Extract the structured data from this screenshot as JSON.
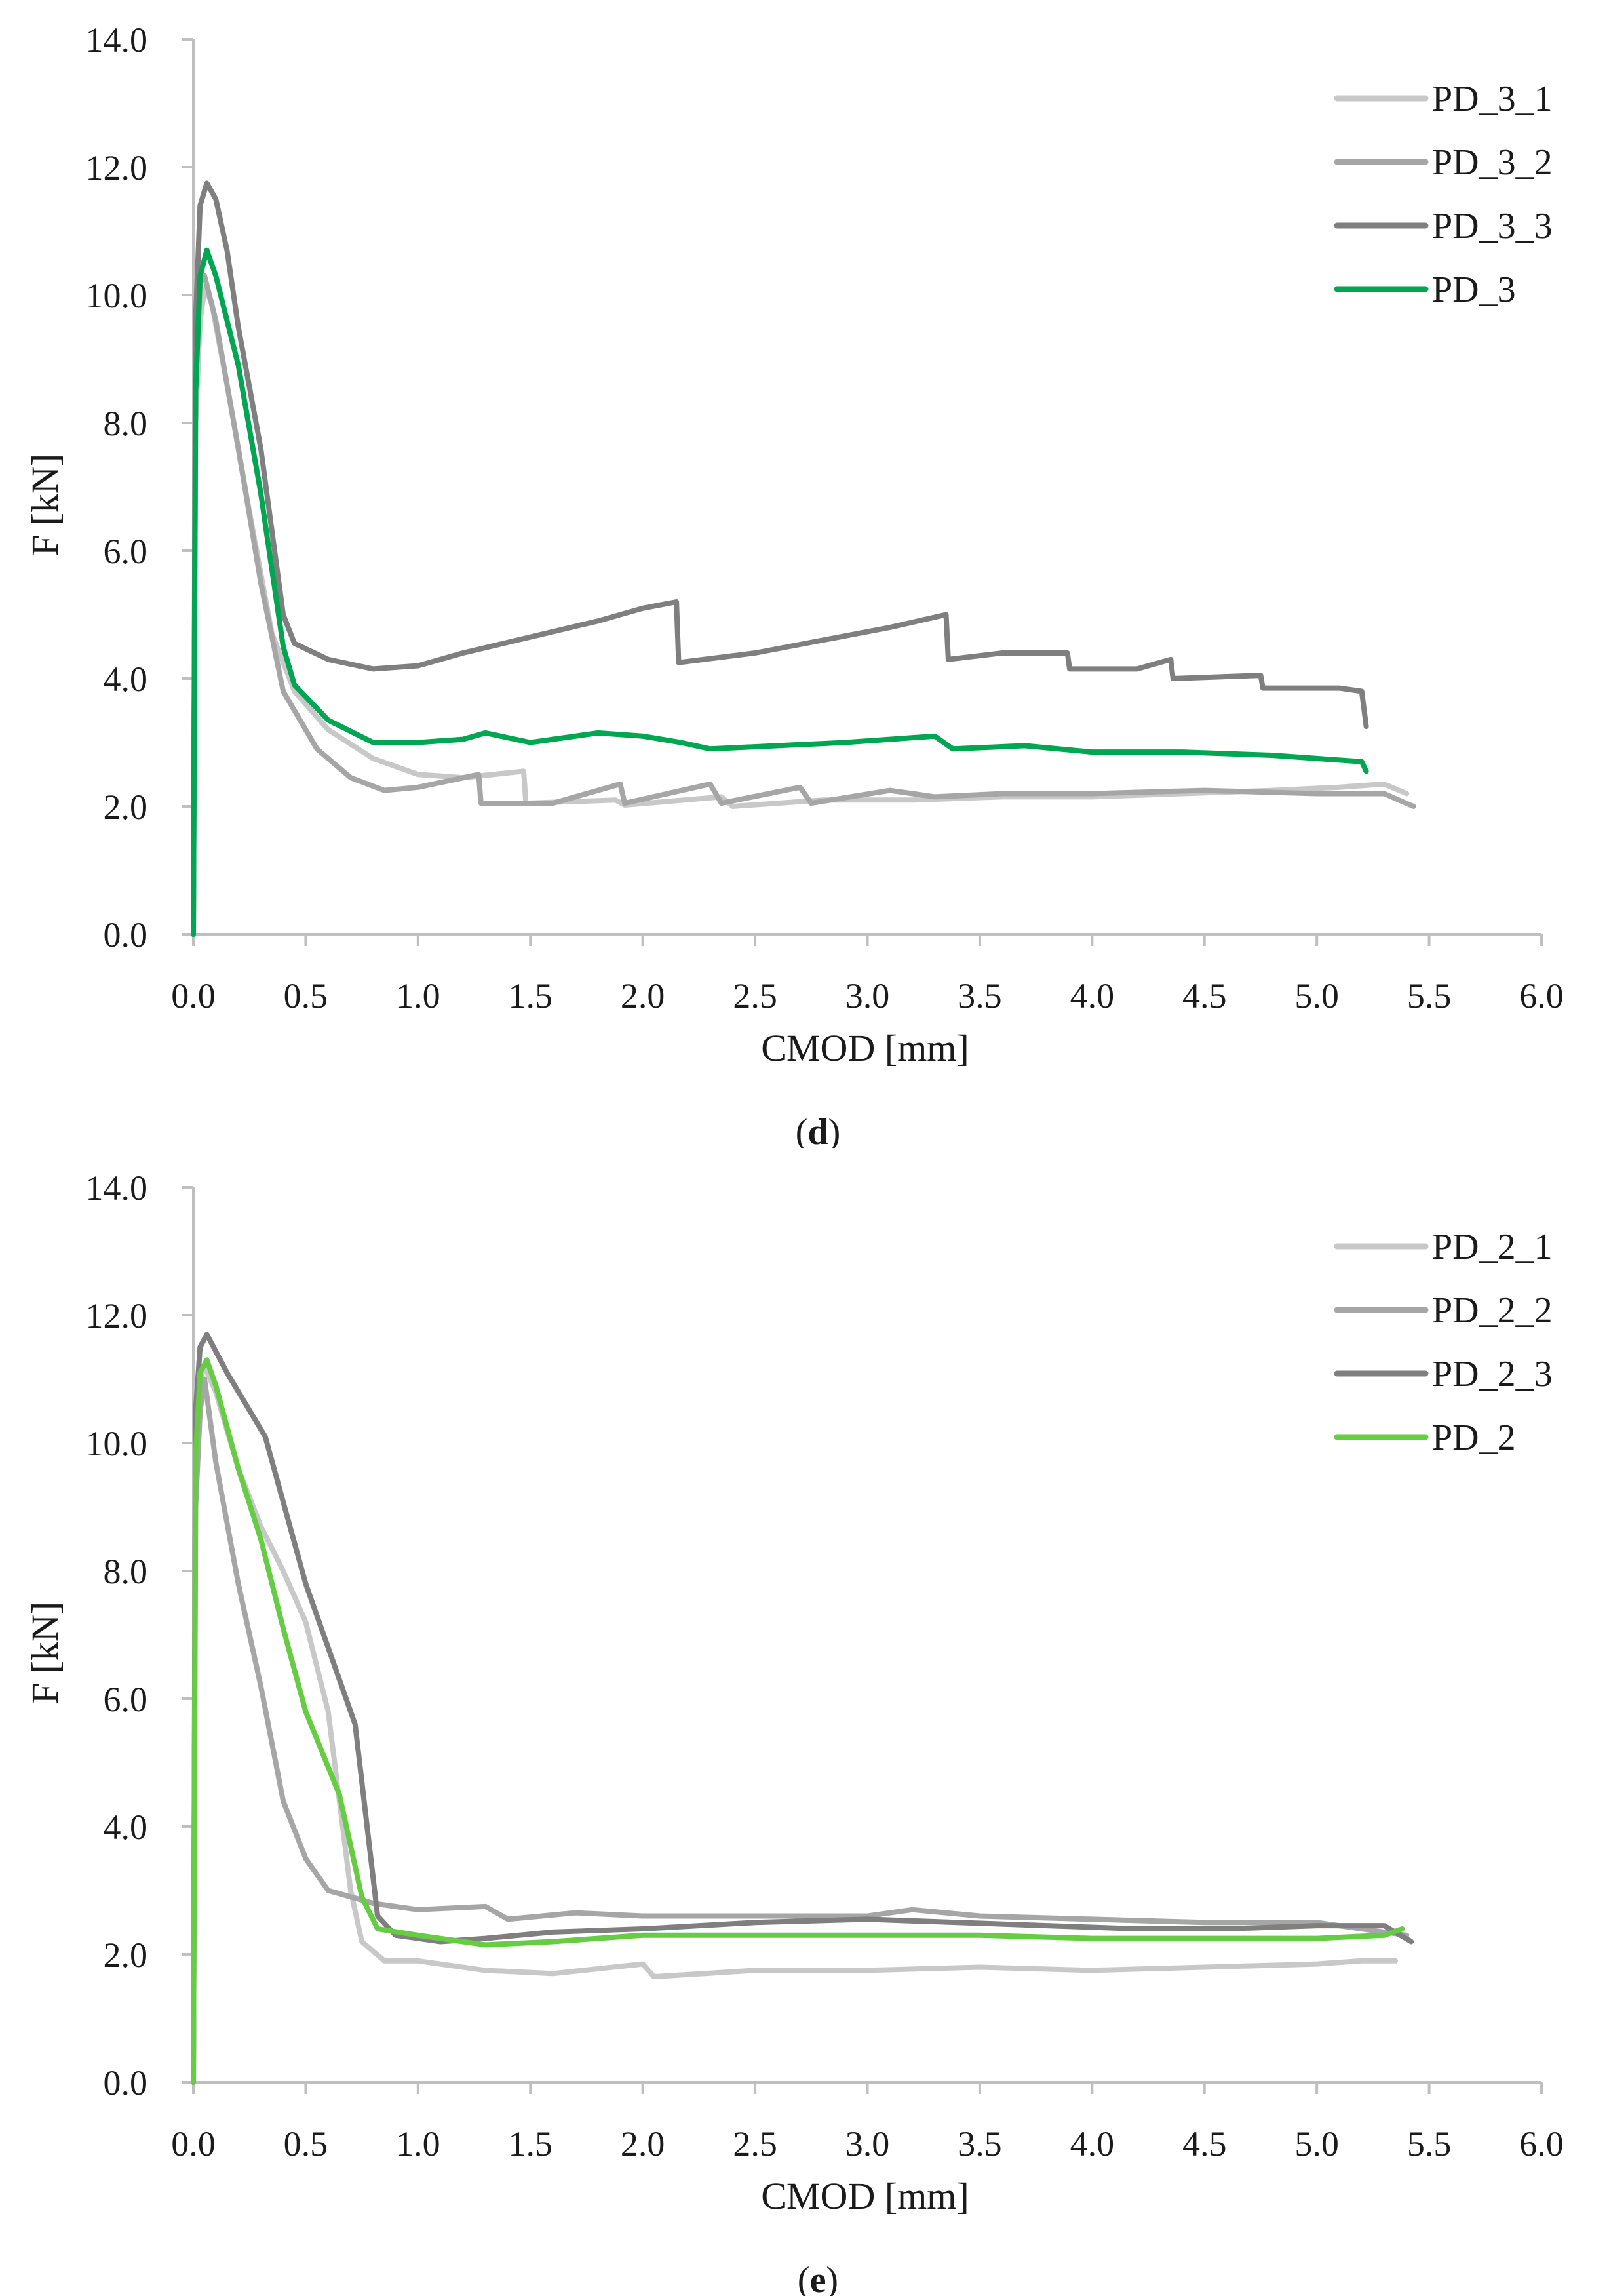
{
  "chart_data": [
    {
      "type": "line",
      "caption": "(d)",
      "caption_letter": "d",
      "title": "",
      "xlabel": "CMOD [mm]",
      "ylabel": "F [kN]",
      "xlim": [
        0,
        6
      ],
      "ylim": [
        0,
        14
      ],
      "x_ticks": [
        "0.0",
        "0.5",
        "1.0",
        "1.5",
        "2.0",
        "2.5",
        "3.0",
        "3.5",
        "4.0",
        "4.5",
        "5.0",
        "5.5",
        "6.0"
      ],
      "y_ticks": [
        "0.0",
        "2.0",
        "4.0",
        "6.0",
        "8.0",
        "10.0",
        "12.0",
        "14.0"
      ],
      "grid": false,
      "legend_position": "top-right",
      "series": [
        {
          "name": "PD_3_1",
          "color": "#c8c8c8",
          "points": [
            [
              0,
              0
            ],
            [
              0.01,
              8.0
            ],
            [
              0.03,
              9.6
            ],
            [
              0.05,
              10.1
            ],
            [
              0.08,
              9.9
            ],
            [
              0.15,
              8.6
            ],
            [
              0.25,
              6.6
            ],
            [
              0.35,
              4.7
            ],
            [
              0.45,
              3.8
            ],
            [
              0.6,
              3.2
            ],
            [
              0.8,
              2.75
            ],
            [
              1.0,
              2.5
            ],
            [
              1.2,
              2.45
            ],
            [
              1.47,
              2.55
            ],
            [
              1.48,
              2.05
            ],
            [
              1.88,
              2.1
            ],
            [
              1.92,
              2.02
            ],
            [
              2.35,
              2.15
            ],
            [
              2.4,
              2.0
            ],
            [
              2.8,
              2.1
            ],
            [
              3.2,
              2.1
            ],
            [
              3.6,
              2.15
            ],
            [
              4.0,
              2.15
            ],
            [
              4.4,
              2.2
            ],
            [
              4.8,
              2.25
            ],
            [
              5.1,
              2.3
            ],
            [
              5.3,
              2.35
            ],
            [
              5.4,
              2.2
            ]
          ]
        },
        {
          "name": "PD_3_2",
          "color": "#a6a6a6",
          "points": [
            [
              0,
              0
            ],
            [
              0.01,
              8.5
            ],
            [
              0.03,
              10.2
            ],
            [
              0.05,
              10.3
            ],
            [
              0.1,
              9.6
            ],
            [
              0.2,
              7.6
            ],
            [
              0.3,
              5.5
            ],
            [
              0.4,
              3.8
            ],
            [
              0.55,
              2.9
            ],
            [
              0.7,
              2.45
            ],
            [
              0.85,
              2.25
            ],
            [
              1.0,
              2.3
            ],
            [
              1.27,
              2.5
            ],
            [
              1.28,
              2.05
            ],
            [
              1.6,
              2.05
            ],
            [
              1.9,
              2.35
            ],
            [
              1.92,
              2.05
            ],
            [
              2.3,
              2.35
            ],
            [
              2.35,
              2.05
            ],
            [
              2.7,
              2.3
            ],
            [
              2.75,
              2.05
            ],
            [
              3.1,
              2.25
            ],
            [
              3.3,
              2.15
            ],
            [
              3.6,
              2.2
            ],
            [
              4.0,
              2.2
            ],
            [
              4.5,
              2.25
            ],
            [
              5.0,
              2.2
            ],
            [
              5.3,
              2.2
            ],
            [
              5.43,
              2.0
            ]
          ]
        },
        {
          "name": "PD_3_3",
          "color": "#7f7f7f",
          "points": [
            [
              0,
              0
            ],
            [
              0.01,
              9.6
            ],
            [
              0.03,
              11.4
            ],
            [
              0.06,
              11.75
            ],
            [
              0.1,
              11.5
            ],
            [
              0.15,
              10.7
            ],
            [
              0.2,
              9.5
            ],
            [
              0.3,
              7.6
            ],
            [
              0.4,
              5.0
            ],
            [
              0.45,
              4.55
            ],
            [
              0.6,
              4.3
            ],
            [
              0.8,
              4.15
            ],
            [
              1.0,
              4.2
            ],
            [
              1.2,
              4.4
            ],
            [
              1.5,
              4.65
            ],
            [
              1.8,
              4.9
            ],
            [
              2.0,
              5.1
            ],
            [
              2.15,
              5.2
            ],
            [
              2.16,
              4.25
            ],
            [
              2.5,
              4.4
            ],
            [
              2.8,
              4.6
            ],
            [
              3.1,
              4.8
            ],
            [
              3.35,
              5.0
            ],
            [
              3.36,
              4.3
            ],
            [
              3.6,
              4.4
            ],
            [
              3.89,
              4.4
            ],
            [
              3.9,
              4.15
            ],
            [
              4.2,
              4.15
            ],
            [
              4.35,
              4.3
            ],
            [
              4.36,
              4.0
            ],
            [
              4.75,
              4.05
            ],
            [
              4.76,
              3.85
            ],
            [
              5.1,
              3.85
            ],
            [
              5.2,
              3.8
            ],
            [
              5.22,
              3.25
            ]
          ]
        },
        {
          "name": "PD_3",
          "color": "#00a651",
          "points": [
            [
              0,
              0
            ],
            [
              0.01,
              8.5
            ],
            [
              0.03,
              10.3
            ],
            [
              0.06,
              10.7
            ],
            [
              0.1,
              10.3
            ],
            [
              0.2,
              8.9
            ],
            [
              0.3,
              6.9
            ],
            [
              0.4,
              4.5
            ],
            [
              0.45,
              3.9
            ],
            [
              0.6,
              3.35
            ],
            [
              0.8,
              3.0
            ],
            [
              1.0,
              3.0
            ],
            [
              1.2,
              3.05
            ],
            [
              1.3,
              3.15
            ],
            [
              1.5,
              3.0
            ],
            [
              1.8,
              3.15
            ],
            [
              2.0,
              3.1
            ],
            [
              2.17,
              3.0
            ],
            [
              2.3,
              2.9
            ],
            [
              2.6,
              2.95
            ],
            [
              2.9,
              3.0
            ],
            [
              3.3,
              3.1
            ],
            [
              3.38,
              2.9
            ],
            [
              3.7,
              2.95
            ],
            [
              4.0,
              2.85
            ],
            [
              4.4,
              2.85
            ],
            [
              4.8,
              2.8
            ],
            [
              5.0,
              2.75
            ],
            [
              5.2,
              2.7
            ],
            [
              5.22,
              2.55
            ]
          ]
        }
      ]
    },
    {
      "type": "line",
      "caption": "(e)",
      "caption_letter": "e",
      "title": "",
      "xlabel": "CMOD [mm]",
      "ylabel": "F [kN]",
      "xlim": [
        0,
        6
      ],
      "ylim": [
        0,
        14
      ],
      "x_ticks": [
        "0.0",
        "0.5",
        "1.0",
        "1.5",
        "2.0",
        "2.5",
        "3.0",
        "3.5",
        "4.0",
        "4.5",
        "5.0",
        "5.5",
        "6.0"
      ],
      "y_ticks": [
        "0.0",
        "2.0",
        "4.0",
        "6.0",
        "8.0",
        "10.0",
        "12.0",
        "14.0"
      ],
      "grid": false,
      "legend_position": "top-right",
      "series": [
        {
          "name": "PD_2_1",
          "color": "#c8c8c8",
          "points": [
            [
              0,
              0
            ],
            [
              0.01,
              9.5
            ],
            [
              0.03,
              11.0
            ],
            [
              0.05,
              11.2
            ],
            [
              0.1,
              10.8
            ],
            [
              0.2,
              9.6
            ],
            [
              0.3,
              8.7
            ],
            [
              0.4,
              8.0
            ],
            [
              0.5,
              7.2
            ],
            [
              0.6,
              5.8
            ],
            [
              0.7,
              3.0
            ],
            [
              0.75,
              2.2
            ],
            [
              0.85,
              1.9
            ],
            [
              1.0,
              1.9
            ],
            [
              1.3,
              1.75
            ],
            [
              1.6,
              1.7
            ],
            [
              2.0,
              1.85
            ],
            [
              2.05,
              1.65
            ],
            [
              2.5,
              1.75
            ],
            [
              3.0,
              1.75
            ],
            [
              3.5,
              1.8
            ],
            [
              4.0,
              1.75
            ],
            [
              4.5,
              1.8
            ],
            [
              5.0,
              1.85
            ],
            [
              5.2,
              1.9
            ],
            [
              5.35,
              1.9
            ]
          ]
        },
        {
          "name": "PD_2_2",
          "color": "#a6a6a6",
          "points": [
            [
              0,
              0
            ],
            [
              0.01,
              9.0
            ],
            [
              0.03,
              10.5
            ],
            [
              0.05,
              11.0
            ],
            [
              0.1,
              9.7
            ],
            [
              0.2,
              7.8
            ],
            [
              0.3,
              6.2
            ],
            [
              0.4,
              4.4
            ],
            [
              0.5,
              3.5
            ],
            [
              0.6,
              3.0
            ],
            [
              0.8,
              2.8
            ],
            [
              1.0,
              2.7
            ],
            [
              1.3,
              2.75
            ],
            [
              1.4,
              2.55
            ],
            [
              1.7,
              2.65
            ],
            [
              2.0,
              2.6
            ],
            [
              2.5,
              2.6
            ],
            [
              3.0,
              2.6
            ],
            [
              3.2,
              2.7
            ],
            [
              3.5,
              2.6
            ],
            [
              4.0,
              2.55
            ],
            [
              4.5,
              2.5
            ],
            [
              5.0,
              2.5
            ],
            [
              5.4,
              2.3
            ]
          ]
        },
        {
          "name": "PD_2_3",
          "color": "#7f7f7f",
          "points": [
            [
              0,
              0
            ],
            [
              0.01,
              10.5
            ],
            [
              0.03,
              11.5
            ],
            [
              0.06,
              11.7
            ],
            [
              0.15,
              11.1
            ],
            [
              0.32,
              10.1
            ],
            [
              0.5,
              7.8
            ],
            [
              0.72,
              5.6
            ],
            [
              0.82,
              2.6
            ],
            [
              0.9,
              2.3
            ],
            [
              1.1,
              2.2
            ],
            [
              1.3,
              2.25
            ],
            [
              1.6,
              2.35
            ],
            [
              2.0,
              2.4
            ],
            [
              2.5,
              2.5
            ],
            [
              3.0,
              2.55
            ],
            [
              3.4,
              2.5
            ],
            [
              3.8,
              2.45
            ],
            [
              4.2,
              2.4
            ],
            [
              4.6,
              2.4
            ],
            [
              5.0,
              2.45
            ],
            [
              5.3,
              2.45
            ],
            [
              5.42,
              2.2
            ]
          ]
        },
        {
          "name": "PD_2",
          "color": "#66cc44",
          "points": [
            [
              0,
              0
            ],
            [
              0.01,
              9.8
            ],
            [
              0.03,
              11.1
            ],
            [
              0.06,
              11.3
            ],
            [
              0.1,
              10.9
            ],
            [
              0.2,
              9.6
            ],
            [
              0.3,
              8.5
            ],
            [
              0.4,
              7.1
            ],
            [
              0.5,
              5.8
            ],
            [
              0.65,
              4.5
            ],
            [
              0.75,
              2.9
            ],
            [
              0.82,
              2.4
            ],
            [
              1.0,
              2.3
            ],
            [
              1.3,
              2.15
            ],
            [
              1.6,
              2.2
            ],
            [
              2.0,
              2.3
            ],
            [
              2.5,
              2.3
            ],
            [
              3.0,
              2.3
            ],
            [
              3.5,
              2.3
            ],
            [
              4.0,
              2.25
            ],
            [
              4.5,
              2.25
            ],
            [
              5.0,
              2.25
            ],
            [
              5.3,
              2.3
            ],
            [
              5.38,
              2.4
            ]
          ]
        }
      ]
    }
  ]
}
